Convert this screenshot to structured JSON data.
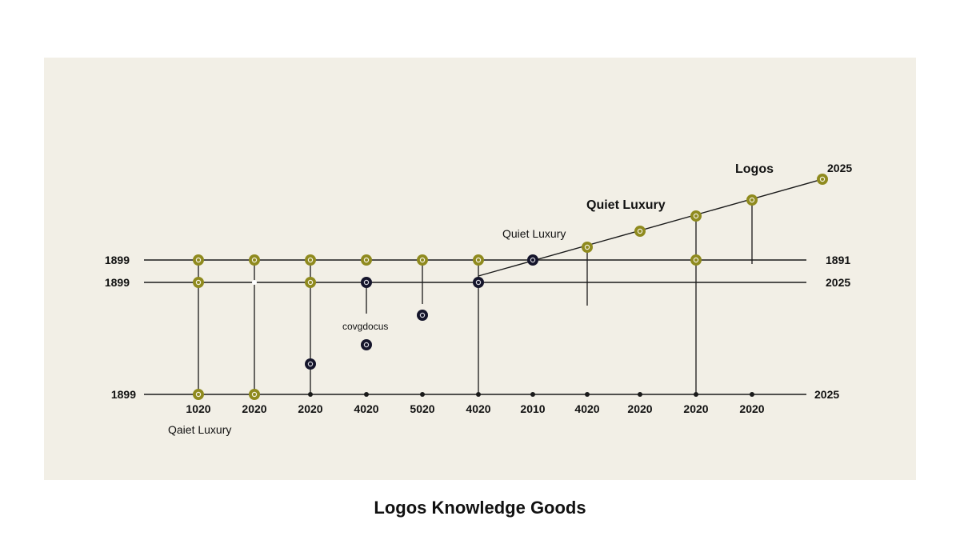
{
  "caption": "Logos Knowledge Goods",
  "colors": {
    "background": "#f2efe6",
    "line": "#1a1a1a",
    "olive_node": "#8f8a1e",
    "dark_node": "#15152b"
  },
  "rows": {
    "top": {
      "left": "1899",
      "right": "1891"
    },
    "mid": {
      "left": "1899",
      "right": "2025"
    },
    "axis": {
      "left": "1899",
      "right": "2025"
    }
  },
  "axis_ticks": [
    "1020",
    "2020",
    "2020",
    "4020",
    "5020",
    "4020",
    "2010",
    "4020",
    "2020",
    "2020",
    "2020"
  ],
  "annotations": {
    "quiet_luxury_bottom": "Qaiet Luxury",
    "quiet_luxury_mid": "Quiet Luxury",
    "quiet_luxury_upper": "Quiet Luxury",
    "logos": "Logos",
    "end_year": "2025",
    "corpdocus": "covgdocus"
  },
  "node_marks": {
    "olive": "o",
    "dark": "o"
  }
}
